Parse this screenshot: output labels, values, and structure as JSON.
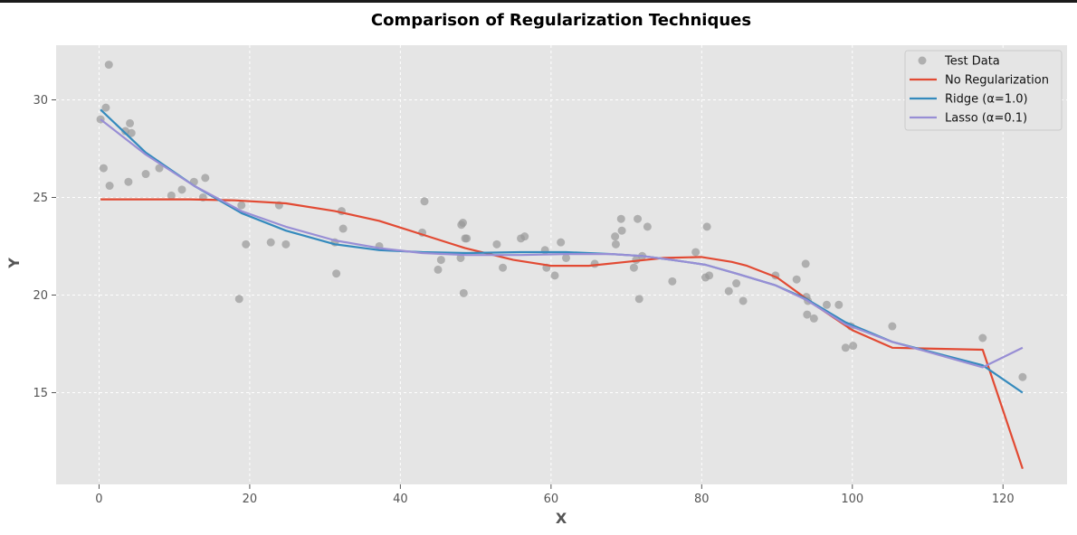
{
  "chart_data": {
    "type": "line",
    "title": "Comparison of Regularization Techniques",
    "xlabel": "X",
    "ylabel": "Y",
    "xlim": [
      -5.7,
      128.5
    ],
    "ylim": [
      10.3,
      32.8
    ],
    "xticks": [
      0,
      20,
      40,
      60,
      80,
      100,
      120
    ],
    "yticks": [
      15,
      20,
      25,
      30
    ],
    "grid": true,
    "legend_position": "top-right",
    "colors": {
      "plot_bg": "#e5e5e5",
      "grid": "#ffffff",
      "scatter": "#999999",
      "no_reg": "#e24a33",
      "ridge": "#348abd",
      "lasso": "#988ed5"
    },
    "scatter": {
      "name": "Test Data",
      "points": [
        [
          0.2,
          29.0
        ],
        [
          0.6,
          26.5
        ],
        [
          0.9,
          29.6
        ],
        [
          1.3,
          31.8
        ],
        [
          1.4,
          25.6
        ],
        [
          3.5,
          28.4
        ],
        [
          3.9,
          25.8
        ],
        [
          4.1,
          28.8
        ],
        [
          4.3,
          28.3
        ],
        [
          6.2,
          26.2
        ],
        [
          8.0,
          26.5
        ],
        [
          9.6,
          25.1
        ],
        [
          11.0,
          25.4
        ],
        [
          12.6,
          25.8
        ],
        [
          13.8,
          25.0
        ],
        [
          14.1,
          26.0
        ],
        [
          18.6,
          19.8
        ],
        [
          18.9,
          24.6
        ],
        [
          19.5,
          22.6
        ],
        [
          22.8,
          22.7
        ],
        [
          23.9,
          24.6
        ],
        [
          24.8,
          22.6
        ],
        [
          31.3,
          22.7
        ],
        [
          31.5,
          21.1
        ],
        [
          32.2,
          24.3
        ],
        [
          32.4,
          23.4
        ],
        [
          37.2,
          22.5
        ],
        [
          42.9,
          23.2
        ],
        [
          43.2,
          24.8
        ],
        [
          45.0,
          21.3
        ],
        [
          45.4,
          21.8
        ],
        [
          48.0,
          21.9
        ],
        [
          48.1,
          23.6
        ],
        [
          48.3,
          23.7
        ],
        [
          48.4,
          20.1
        ],
        [
          48.6,
          22.9
        ],
        [
          48.8,
          22.9
        ],
        [
          52.8,
          22.6
        ],
        [
          53.6,
          21.4
        ],
        [
          56.0,
          22.9
        ],
        [
          56.5,
          23.0
        ],
        [
          59.2,
          22.3
        ],
        [
          59.4,
          21.4
        ],
        [
          60.5,
          21.0
        ],
        [
          61.3,
          22.7
        ],
        [
          62.0,
          21.9
        ],
        [
          65.8,
          21.6
        ],
        [
          68.5,
          23.0
        ],
        [
          68.6,
          22.6
        ],
        [
          69.3,
          23.9
        ],
        [
          69.4,
          23.3
        ],
        [
          71.0,
          21.4
        ],
        [
          71.3,
          21.8
        ],
        [
          71.5,
          23.9
        ],
        [
          71.7,
          19.8
        ],
        [
          72.1,
          22.0
        ],
        [
          72.8,
          23.5
        ],
        [
          76.1,
          20.7
        ],
        [
          79.2,
          22.2
        ],
        [
          80.5,
          20.9
        ],
        [
          80.7,
          23.5
        ],
        [
          81.0,
          21.0
        ],
        [
          83.6,
          20.2
        ],
        [
          84.6,
          20.6
        ],
        [
          85.5,
          19.7
        ],
        [
          89.8,
          21.0
        ],
        [
          92.6,
          20.8
        ],
        [
          93.8,
          21.6
        ],
        [
          93.9,
          19.9
        ],
        [
          94.0,
          19.0
        ],
        [
          94.1,
          19.7
        ],
        [
          94.9,
          18.8
        ],
        [
          96.6,
          19.5
        ],
        [
          98.2,
          19.5
        ],
        [
          99.1,
          17.3
        ],
        [
          99.8,
          18.4
        ],
        [
          100.1,
          17.4
        ],
        [
          105.3,
          18.4
        ],
        [
          117.3,
          17.8
        ],
        [
          122.6,
          15.8
        ]
      ]
    },
    "series": [
      {
        "name": "No Regularization",
        "x": [
          0.2,
          6,
          12,
          18,
          24.8,
          31.3,
          37.2,
          42.9,
          48.6,
          55,
          60,
          65,
          70,
          75,
          80,
          84,
          86,
          90,
          95,
          100,
          105.3,
          111,
          117.3,
          122.6
        ],
        "y": [
          24.9,
          24.9,
          24.9,
          24.85,
          24.7,
          24.3,
          23.8,
          23.1,
          22.4,
          21.8,
          21.5,
          21.5,
          21.7,
          21.9,
          21.95,
          21.7,
          21.5,
          20.9,
          19.5,
          18.2,
          17.3,
          17.25,
          17.2,
          11.1
        ]
      },
      {
        "name": "Ridge (α=1.0)",
        "x": [
          0.2,
          6.2,
          12.6,
          18.9,
          24.8,
          31.3,
          37.2,
          42.9,
          48.8,
          56,
          62,
          68,
          72.1,
          76.1,
          80.5,
          84.6,
          89.8,
          93.9,
          99.1,
          105.3,
          117.3,
          122.6
        ],
        "y": [
          29.5,
          27.3,
          25.6,
          24.2,
          23.3,
          22.6,
          22.3,
          22.2,
          22.15,
          22.2,
          22.2,
          22.1,
          22.0,
          21.8,
          21.55,
          21.1,
          20.5,
          19.8,
          18.6,
          17.6,
          16.4,
          15.0
        ]
      },
      {
        "name": "Lasso (α=0.1)",
        "x": [
          0.2,
          6.2,
          12.6,
          18.9,
          24.8,
          31.3,
          37.2,
          42.9,
          48.8,
          56,
          62,
          68,
          72.1,
          76.1,
          80.5,
          84.6,
          89.8,
          93.9,
          99.1,
          105.3,
          117.3,
          122.6
        ],
        "y": [
          29.0,
          27.2,
          25.6,
          24.3,
          23.5,
          22.8,
          22.4,
          22.15,
          22.05,
          22.05,
          22.1,
          22.1,
          22.0,
          21.8,
          21.55,
          21.1,
          20.5,
          19.75,
          18.5,
          17.6,
          16.3,
          17.3
        ]
      }
    ]
  }
}
